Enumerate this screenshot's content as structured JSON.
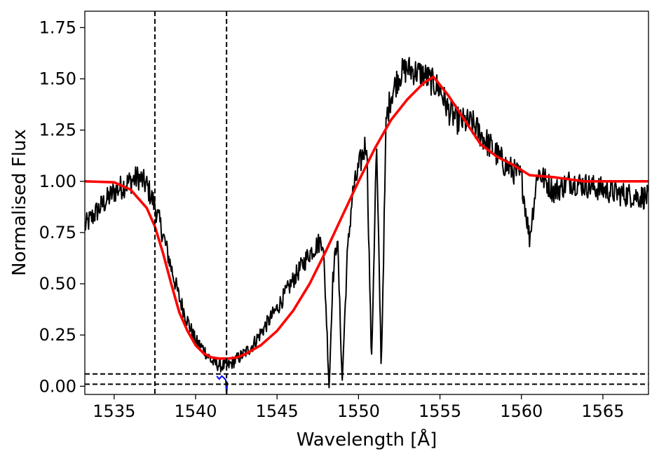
{
  "chart_data": {
    "type": "line",
    "title": "",
    "xlabel": "Wavelength [Å]",
    "ylabel": "Normalised Flux",
    "xlim": [
      1533.2,
      1567.8
    ],
    "ylim": [
      -0.04,
      1.83
    ],
    "xticks": [
      1535,
      1540,
      1545,
      1550,
      1555,
      1560,
      1565
    ],
    "xtick_labels": [
      "1535",
      "1540",
      "1545",
      "1550",
      "1555",
      "1560",
      "1565"
    ],
    "yticks": [
      0.0,
      0.25,
      0.5,
      0.75,
      1.0,
      1.25,
      1.5,
      1.75
    ],
    "ytick_labels": [
      "0.00",
      "0.25",
      "0.50",
      "0.75",
      "1.00",
      "1.25",
      "1.50",
      "1.75"
    ],
    "grid": false,
    "legend": "none",
    "series": [
      {
        "color": "#000000",
        "noise": 0.07,
        "x": [
          1533.2,
          1534.0,
          1535.0,
          1536.0,
          1536.5,
          1537.0,
          1537.5,
          1538.0,
          1538.5,
          1539.0,
          1539.5,
          1540.0,
          1540.5,
          1541.0,
          1541.5,
          1542.0,
          1542.5,
          1543.0,
          1543.5,
          1544.0,
          1545.0,
          1546.0,
          1547.0,
          1547.8,
          1548.0,
          1548.2,
          1548.4,
          1548.7,
          1549.0,
          1549.3,
          1549.6,
          1550.0,
          1550.5,
          1550.8,
          1551.1,
          1551.4,
          1551.7,
          1552.0,
          1552.5,
          1553.0,
          1554.0,
          1555.0,
          1555.5,
          1556.0,
          1557.0,
          1558.0,
          1559.0,
          1560.0,
          1560.5,
          1561.0,
          1562.0,
          1563.0,
          1564.0,
          1565.0,
          1566.0,
          1567.8
        ],
        "y": [
          0.78,
          0.86,
          0.95,
          1.0,
          1.02,
          0.98,
          0.88,
          0.74,
          0.58,
          0.43,
          0.32,
          0.22,
          0.18,
          0.12,
          0.1,
          0.1,
          0.13,
          0.16,
          0.2,
          0.26,
          0.38,
          0.52,
          0.65,
          0.72,
          0.4,
          -0.01,
          0.5,
          0.74,
          0.02,
          0.62,
          0.92,
          1.06,
          1.2,
          0.1,
          1.18,
          0.08,
          1.3,
          1.42,
          1.52,
          1.55,
          1.52,
          1.45,
          1.35,
          1.3,
          1.28,
          1.18,
          1.08,
          1.02,
          0.72,
          1.05,
          0.95,
          1.0,
          0.98,
          0.96,
          0.94,
          0.92
        ]
      },
      {
        "color": "#ff0000",
        "noise": 0,
        "x": [
          1533.2,
          1535.0,
          1536.0,
          1537.0,
          1537.5,
          1538.0,
          1538.5,
          1539.0,
          1539.5,
          1540.0,
          1540.5,
          1541.0,
          1541.5,
          1542.0,
          1542.5,
          1543.0,
          1544.0,
          1545.0,
          1546.0,
          1547.0,
          1548.0,
          1549.0,
          1550.0,
          1551.0,
          1552.0,
          1553.0,
          1554.0,
          1554.6,
          1555.5,
          1556.5,
          1557.5,
          1558.5,
          1559.5,
          1560.5,
          1562.0,
          1563.8,
          1565.0,
          1567.8
        ],
        "y": [
          1.0,
          0.995,
          0.96,
          0.87,
          0.78,
          0.65,
          0.5,
          0.36,
          0.27,
          0.2,
          0.16,
          0.14,
          0.135,
          0.135,
          0.14,
          0.155,
          0.2,
          0.27,
          0.37,
          0.5,
          0.66,
          0.83,
          1.0,
          1.16,
          1.3,
          1.4,
          1.48,
          1.51,
          1.42,
          1.3,
          1.18,
          1.12,
          1.08,
          1.03,
          1.02,
          1.0,
          1.0,
          1.0
        ]
      },
      {
        "color": "#0000ff",
        "noise": 0,
        "x": [
          1541.3,
          1541.45,
          1541.6,
          1541.75,
          1541.85,
          1541.9,
          1541.95
        ],
        "y": [
          0.05,
          0.035,
          0.05,
          0.04,
          0.03,
          -0.04,
          0.02
        ]
      }
    ],
    "reference_lines": {
      "vertical": [
        1537.5,
        1541.9
      ],
      "horizontal": [
        0.06,
        0.01
      ]
    }
  }
}
